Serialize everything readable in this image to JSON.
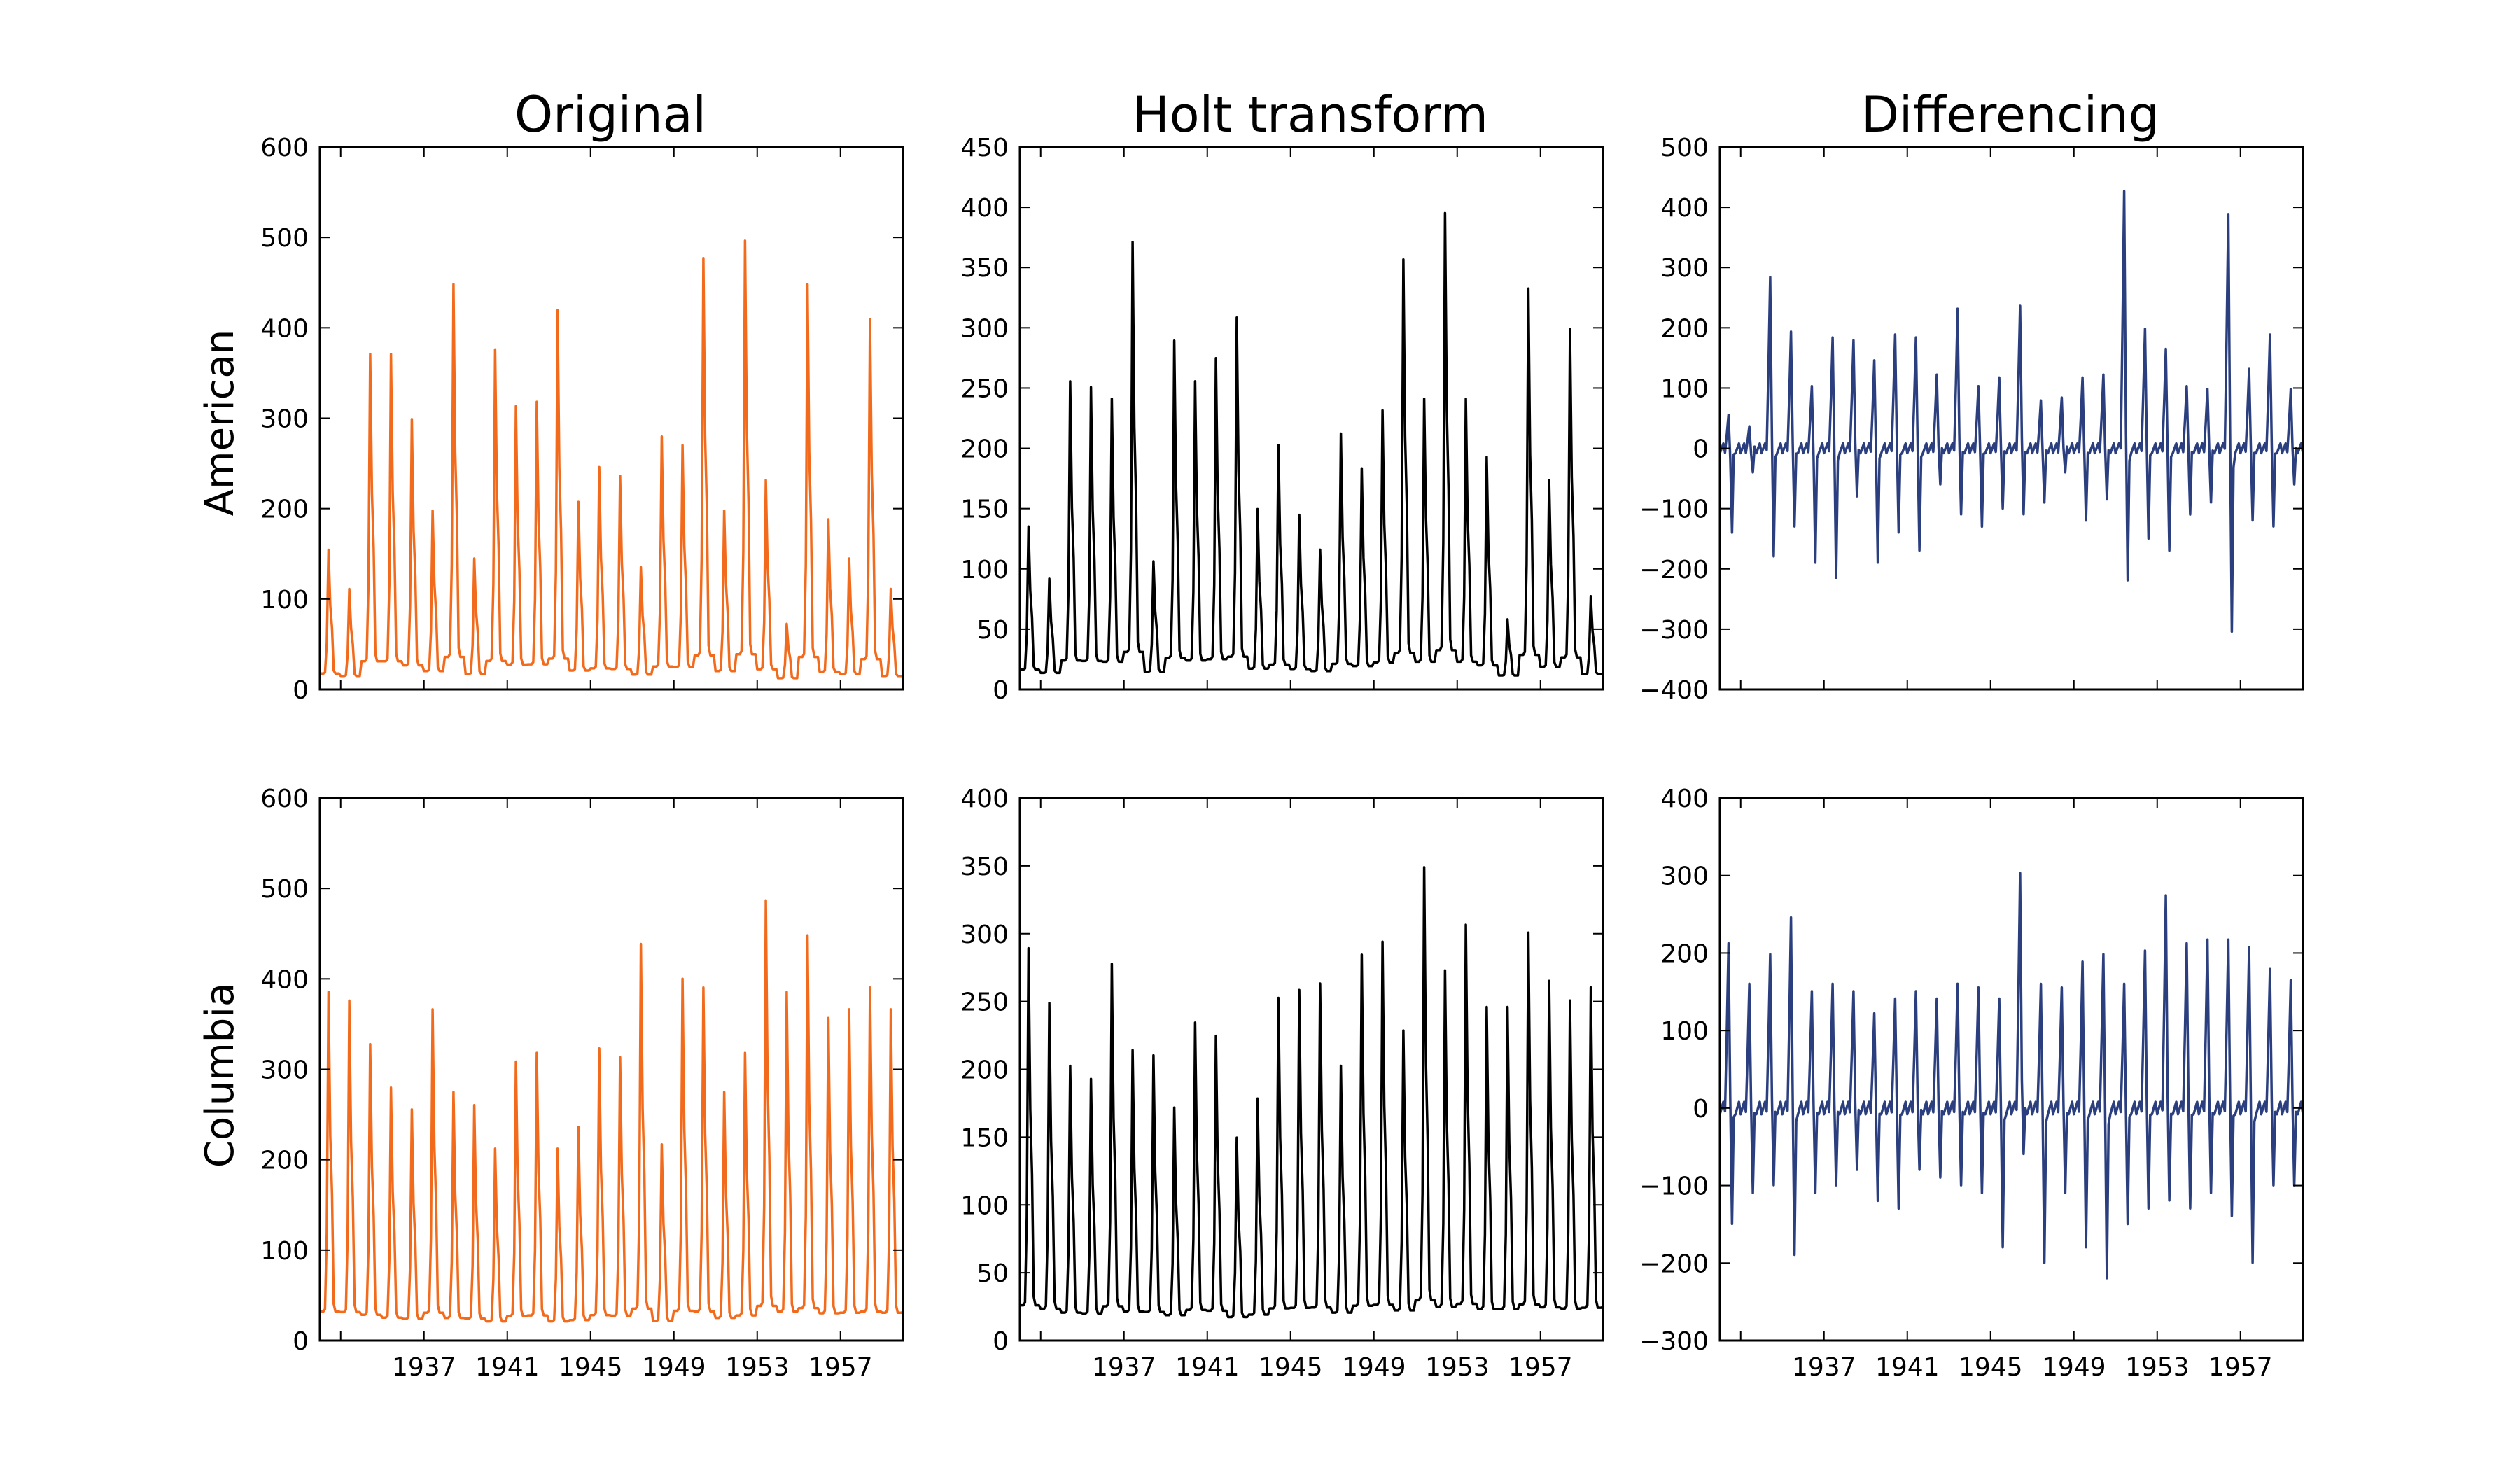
{
  "figure": {
    "column_titles": [
      "Original",
      "Holt transform",
      "Differencing"
    ],
    "row_labels": [
      "American",
      "Columbia"
    ]
  },
  "colors": {
    "original": "#f26b1d",
    "holt": "#000000",
    "differencing": "#2b3f7f"
  },
  "chart_data": [
    {
      "type": "line",
      "row": "American",
      "column": "Original",
      "color": "#f26b1d",
      "x_start": 1932.0,
      "x_end": 1960.0,
      "ylim": [
        0,
        600
      ],
      "yticks": [
        0,
        100,
        200,
        300,
        400,
        500,
        600
      ],
      "xticks": [],
      "peaks": [
        160,
        115,
        385,
        385,
        310,
        205,
        465,
        150,
        390,
        325,
        330,
        435,
        215,
        255,
        245,
        140,
        290,
        280,
        495,
        205,
        515,
        240,
        75,
        465,
        195,
        150,
        425,
        115,
        105
      ]
    },
    {
      "type": "line",
      "row": "American",
      "column": "Holt transform",
      "color": "#000000",
      "x_start": 1932.0,
      "x_end": 1960.0,
      "ylim": [
        0,
        450
      ],
      "yticks": [
        0,
        50,
        100,
        150,
        200,
        250,
        300,
        350,
        400,
        450
      ],
      "xticks": [],
      "peaks": [
        140,
        95,
        265,
        260,
        250,
        385,
        110,
        300,
        265,
        285,
        320,
        155,
        210,
        150,
        120,
        220,
        190,
        240,
        370,
        250,
        410,
        250,
        200,
        60,
        345,
        180,
        310,
        80,
        85
      ]
    },
    {
      "type": "line",
      "row": "American",
      "column": "Differencing",
      "color": "#2b3f7f",
      "x_start": 1932.0,
      "x_end": 1960.0,
      "ylim": [
        -400,
        500
      ],
      "yticks": [
        -400,
        -300,
        -200,
        -100,
        0,
        100,
        200,
        300,
        400,
        500
      ],
      "xticks": [],
      "peaks": [
        50,
        30,
        290,
        195,
        100,
        185,
        180,
        145,
        190,
        185,
        120,
        235,
        100,
        115,
        240,
        75,
        80,
        115,
        120,
        440,
        200,
        165,
        100,
        95,
        400,
        130,
        190,
        95,
        60
      ],
      "troughs": [
        -140,
        -40,
        -180,
        -130,
        -190,
        -215,
        -80,
        -190,
        -140,
        -170,
        -60,
        -110,
        -130,
        -100,
        -110,
        -90,
        -40,
        -120,
        -85,
        -220,
        -150,
        -170,
        -110,
        -90,
        -305,
        -120,
        -130,
        -60,
        -35
      ]
    },
    {
      "type": "line",
      "row": "Columbia",
      "column": "Original",
      "color": "#f26b1d",
      "x_start": 1932.0,
      "x_end": 1960.0,
      "ylim": [
        0,
        600
      ],
      "yticks": [
        0,
        100,
        200,
        300,
        400,
        500,
        600
      ],
      "xticks": [
        1937,
        1941,
        1945,
        1949,
        1953,
        1957
      ],
      "peaks": [
        400,
        390,
        340,
        290,
        265,
        380,
        285,
        270,
        220,
        320,
        330,
        220,
        245,
        335,
        325,
        455,
        225,
        415,
        405,
        285,
        330,
        505,
        400,
        465,
        370,
        380,
        405,
        380,
        390
      ]
    },
    {
      "type": "line",
      "row": "Columbia",
      "column": "Holt transform",
      "color": "#000000",
      "x_start": 1932.0,
      "x_end": 1960.0,
      "ylim": [
        0,
        400
      ],
      "yticks": [
        0,
        50,
        100,
        150,
        200,
        250,
        300,
        350,
        400
      ],
      "xticks": [
        1937,
        1941,
        1945,
        1949,
        1953,
        1957
      ],
      "peaks": [
        300,
        258,
        210,
        200,
        288,
        222,
        218,
        178,
        243,
        233,
        155,
        185,
        262,
        268,
        273,
        210,
        295,
        305,
        237,
        362,
        283,
        318,
        255,
        255,
        312,
        275,
        260,
        270,
        280
      ]
    },
    {
      "type": "line",
      "row": "Columbia",
      "column": "Differencing",
      "color": "#2b3f7f",
      "x_start": 1932.0,
      "x_end": 1960.0,
      "ylim": [
        -300,
        400
      ],
      "yticks": [
        -300,
        -200,
        -100,
        0,
        100,
        200,
        300,
        400
      ],
      "xticks": [
        1937,
        1941,
        1945,
        1949,
        1953,
        1957
      ],
      "peaks": [
        215,
        160,
        200,
        250,
        150,
        160,
        150,
        120,
        140,
        150,
        140,
        160,
        155,
        140,
        310,
        160,
        155,
        190,
        200,
        160,
        205,
        280,
        215,
        220,
        220,
        210,
        180,
        165,
        150
      ],
      "troughs": [
        -150,
        -110,
        -100,
        -190,
        -110,
        -100,
        -80,
        -120,
        -130,
        -80,
        -90,
        -100,
        -110,
        -180,
        -60,
        -200,
        -110,
        -180,
        -220,
        -150,
        -130,
        -120,
        -130,
        -110,
        -140,
        -200,
        -100,
        -100,
        -100
      ]
    }
  ]
}
